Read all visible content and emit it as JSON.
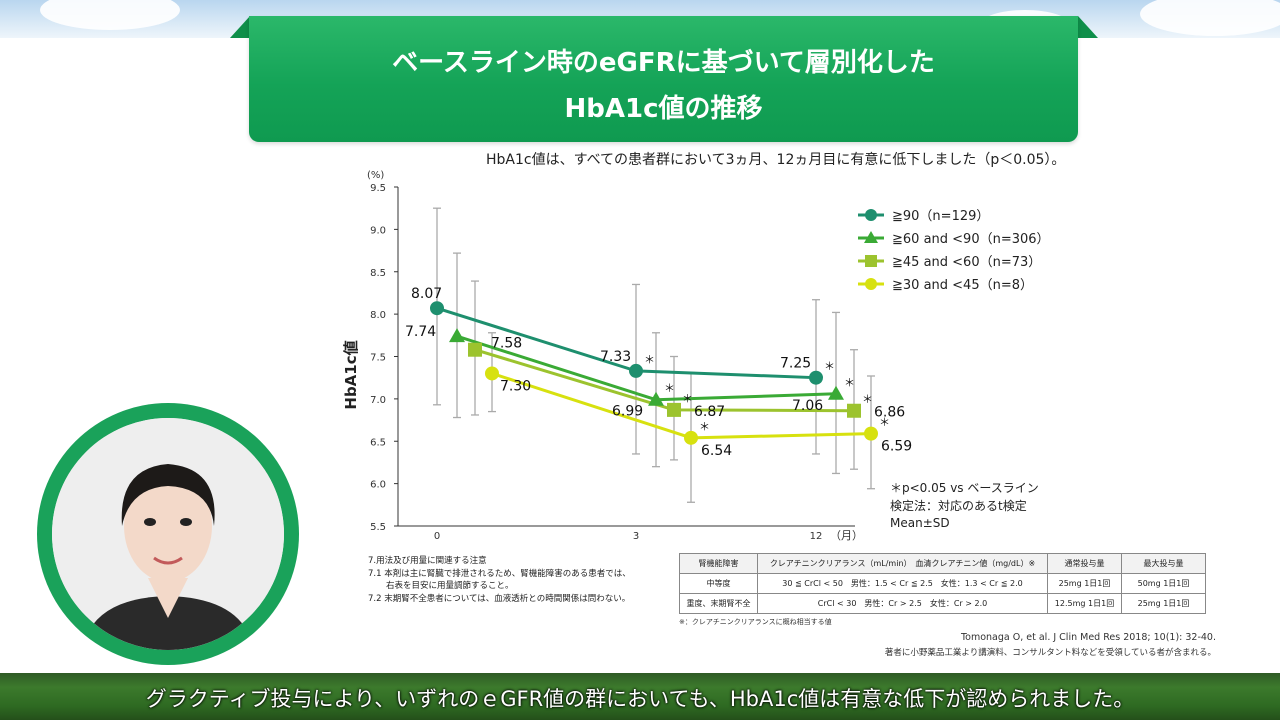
{
  "title": {
    "line1": "ベースライン時のeGFRに基づいて層別化した",
    "line2": "HbA1c値の推移"
  },
  "subtitle": "HbA1c値は、すべての患者群において3ヵ月、12ヵ月目に有意に低下しました（p＜0.05）。",
  "chart_data": {
    "type": "line",
    "ylabel": "HbA1c値",
    "y_unit": "(%)",
    "x_unit": "（月）",
    "ylim": [
      5.5,
      9.5
    ],
    "yticks": [
      "9.5",
      "9.0",
      "8.5",
      "8.0",
      "7.5",
      "7.0",
      "6.5",
      "6.0",
      "5.5"
    ],
    "x_ticks": [
      "0",
      "3",
      "12"
    ],
    "series": [
      {
        "name": "≧90（n=129）",
        "marker": "circle",
        "color": "#1e8f6e",
        "values": [
          8.07,
          7.33,
          7.25
        ],
        "labels": [
          "8.07",
          "7.33",
          "7.25"
        ],
        "err_hi": [
          9.25,
          8.35,
          8.17
        ],
        "err_lo": [
          6.93,
          6.35,
          6.35
        ]
      },
      {
        "name": "≧60 and <90（n=306）",
        "marker": "triangle",
        "color": "#3aaa35",
        "values": [
          7.74,
          6.99,
          7.06
        ],
        "labels": [
          "7.74",
          "6.99",
          "7.06"
        ],
        "err_hi": [
          8.72,
          7.78,
          8.02
        ],
        "err_lo": [
          6.78,
          6.2,
          6.12
        ]
      },
      {
        "name": "≧45 and <60（n=73）",
        "marker": "square",
        "color": "#9cc32e",
        "values": [
          7.58,
          6.87,
          6.86
        ],
        "labels": [
          "7.58",
          "6.87",
          "6.86"
        ],
        "err_hi": [
          8.39,
          7.5,
          7.58
        ],
        "err_lo": [
          6.81,
          6.28,
          6.17
        ]
      },
      {
        "name": "≧30 and <45（n=8）",
        "marker": "circle",
        "color": "#d7e10f",
        "values": [
          7.3,
          6.54,
          6.59
        ],
        "labels": [
          "7.30",
          "6.54",
          "6.59"
        ],
        "err_hi": [
          7.78,
          7.31,
          7.27
        ],
        "err_lo": [
          6.85,
          5.78,
          5.94
        ]
      }
    ],
    "significance_mark": "＊",
    "footnotes": [
      "＊p<0.05 vs ベースライン",
      "検定法：対応のあるt検定",
      "Mean±SD"
    ],
    "colors": {
      "axis": "#333333",
      "errorbar": "#aaaaaa"
    }
  },
  "notes": {
    "lines": [
      "7.用法及び用量に関連する注意",
      "7.1 本剤は主に腎臓で排泄されるため、腎機能障害のある患者では、",
      "右表を目安に用量調節すること。",
      "7.2 末期腎不全患者については、血液透析との時間関係は問わない。"
    ]
  },
  "dose_table": {
    "headers": [
      "腎機能障害",
      "クレアチニンクリアランス（mL/min）　血清クレアチニン値（mg/dL）※",
      "通常投与量",
      "最大投与量"
    ],
    "rows": [
      [
        "中等度",
        "30 ≦ CrCl < 50　男性：1.5 < Cr ≦ 2.5　女性：1.3 < Cr ≦ 2.0",
        "25mg 1日1回",
        "50mg 1日1回"
      ],
      [
        "重度、末期腎不全",
        "CrCl < 30　男性：Cr > 2.5　女性：Cr > 2.0",
        "12.5mg 1日1回",
        "25mg 1日1回"
      ]
    ],
    "note": "※：クレアチニンクリアランスに概ね相当する値"
  },
  "reference": {
    "citation": "Tomonaga O, et al. J Clin Med Res 2018; 10(1): 32-40.",
    "disclosure": "著者に小野薬品工業より講演料、コンサルタント料などを受領している者が含まれる。"
  },
  "caption": "グラクティブ投与により、いずれのｅGFR値の群においても、HbA1c値は有意な低下が認められました。",
  "colors": {
    "brand_green": "#14a357"
  }
}
